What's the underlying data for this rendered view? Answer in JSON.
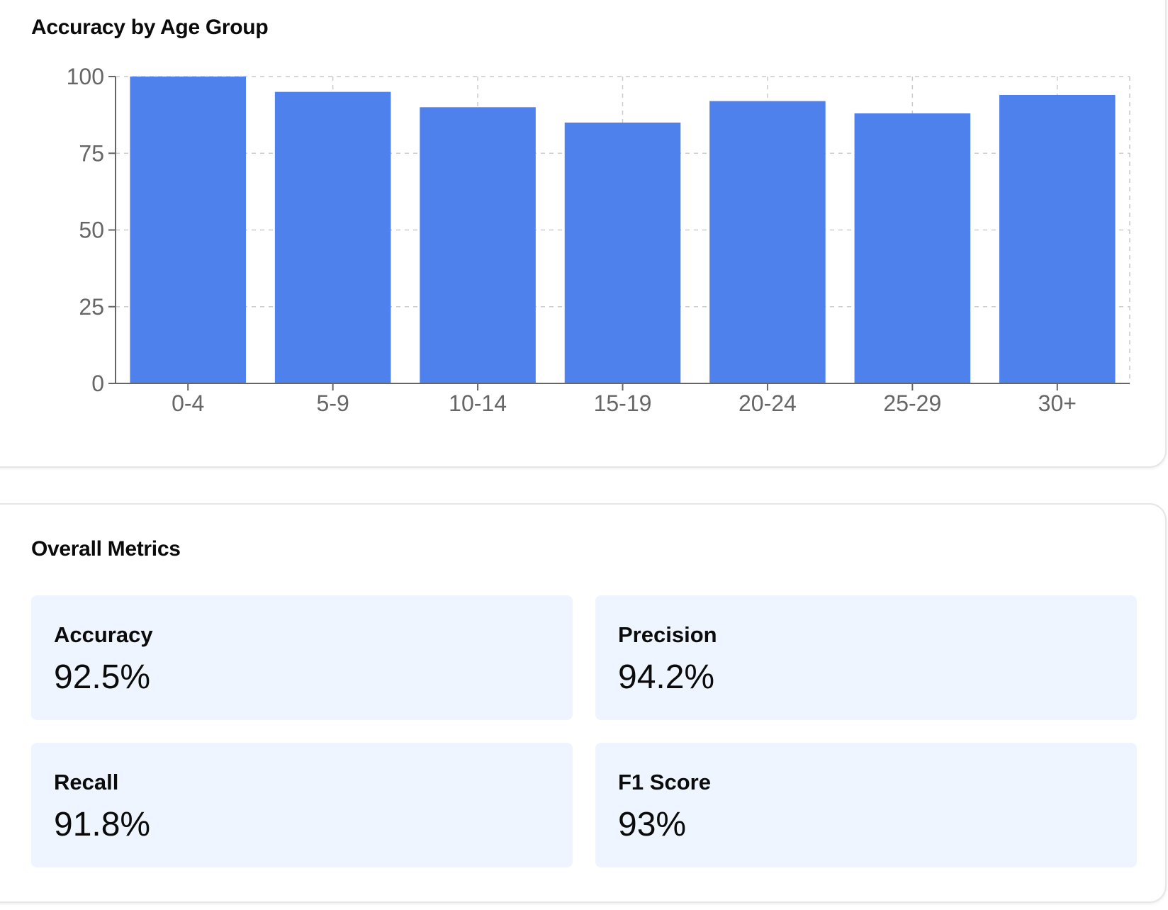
{
  "chart_data": {
    "type": "bar",
    "title": "Accuracy by Age Group",
    "categories": [
      "0-4",
      "5-9",
      "10-14",
      "15-19",
      "20-24",
      "25-29",
      "30+"
    ],
    "values": [
      100,
      95,
      90,
      85,
      92,
      88,
      94
    ],
    "yticks": [
      "0",
      "25",
      "50",
      "75",
      "100"
    ],
    "ylim": [
      0,
      100
    ],
    "xlabel": "",
    "ylabel": "",
    "grid": true,
    "bar_color": "#4f81ec"
  },
  "metrics": {
    "title": "Overall Metrics",
    "items": [
      {
        "label": "Accuracy",
        "value": "92.5%"
      },
      {
        "label": "Precision",
        "value": "94.2%"
      },
      {
        "label": "Recall",
        "value": "91.8%"
      },
      {
        "label": "F1 Score",
        "value": "93%"
      }
    ]
  }
}
